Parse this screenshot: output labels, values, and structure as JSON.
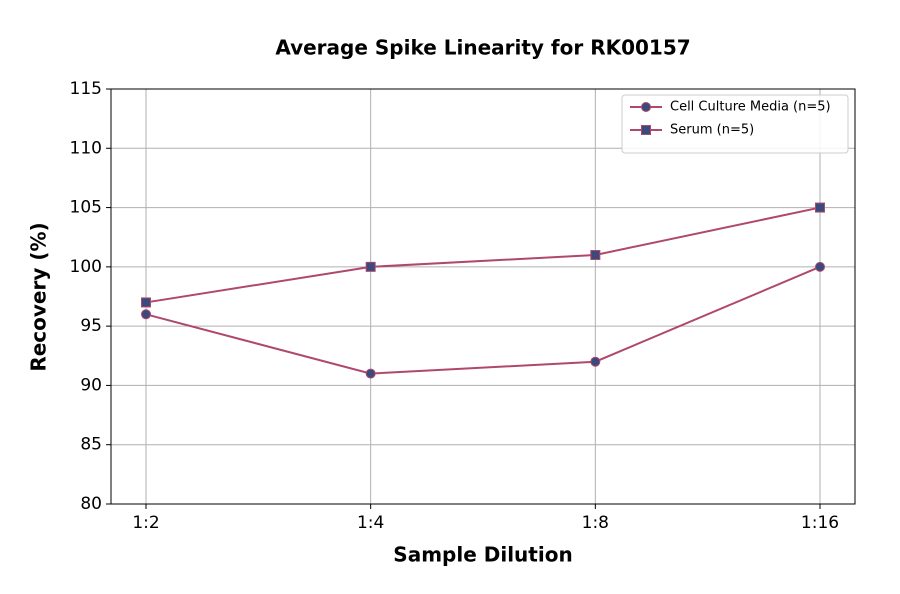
{
  "chart_data": {
    "type": "line",
    "title": "Average Spike Linearity for RK00157",
    "x_label": "Sample Dilution",
    "y_label": "Recovery (%)",
    "categories": [
      "1:2",
      "1:4",
      "1:8",
      "1:16"
    ],
    "series": [
      {
        "name": "Cell Culture Media (n=5)",
        "color": "#b0476d",
        "marker_color": "#3a4a7c",
        "marker": "circle",
        "values": [
          96,
          91,
          92,
          100
        ]
      },
      {
        "name": "Serum (n=5)",
        "color": "#b0476d",
        "marker_color": "#3a4a7c",
        "marker": "square",
        "values": [
          97,
          100,
          101,
          105
        ]
      }
    ],
    "ylim": [
      80,
      115
    ],
    "yticks": [
      80,
      85,
      90,
      95,
      100,
      105,
      110,
      115
    ],
    "grid": true,
    "legend": "upper right"
  }
}
